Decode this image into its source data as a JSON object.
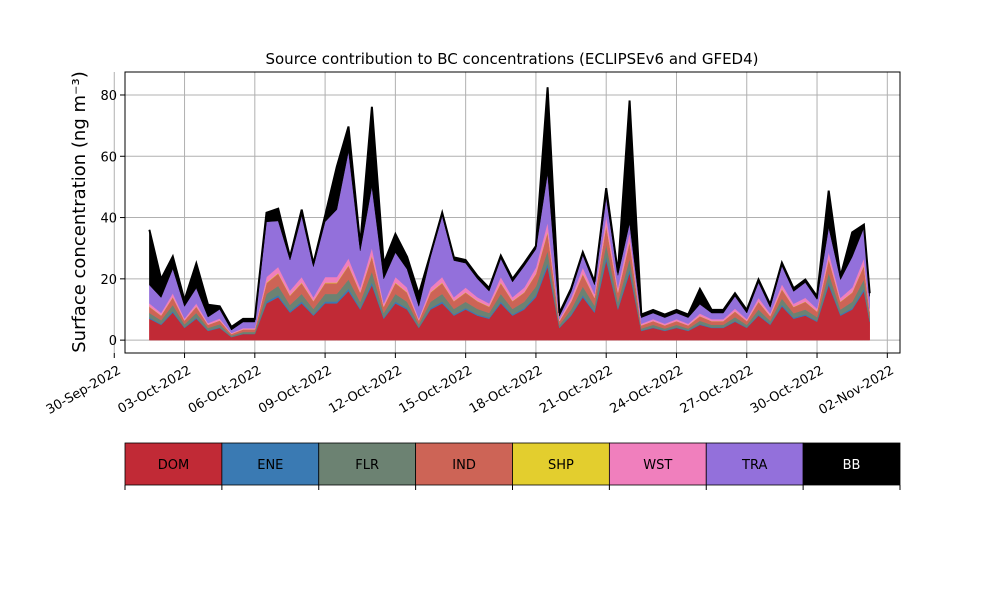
{
  "chart_data": {
    "type": "area",
    "stacked": true,
    "title": "Source contribution to BC concentrations (ECLIPSEv6 and GFED4)",
    "xlabel": "",
    "ylabel": "Surface concentration (ng m⁻³)",
    "xlim": [
      "2022-09-30T11:00",
      "2022-11-02T13:00"
    ],
    "ylim": [
      -4.2,
      87.5
    ],
    "grid": true,
    "x_ticks": [
      "2022-09-30",
      "2022-10-03",
      "2022-10-06",
      "2022-10-09",
      "2022-10-12",
      "2022-10-15",
      "2022-10-18",
      "2022-10-21",
      "2022-10-24",
      "2022-10-27",
      "2022-10-30",
      "2022-11-02"
    ],
    "x_tick_labels": [
      "30-Sep-2022",
      "03-Oct-2022",
      "06-Oct-2022",
      "09-Oct-2022",
      "12-Oct-2022",
      "15-Oct-2022",
      "18-Oct-2022",
      "21-Oct-2022",
      "24-Oct-2022",
      "27-Oct-2022",
      "30-Oct-2022",
      "02-Nov-2022"
    ],
    "y_ticks": [
      0,
      20,
      40,
      60,
      80
    ],
    "y_tick_labels": [
      "0",
      "20",
      "40",
      "60",
      "80"
    ],
    "x": [
      "2022-10-01T12:00",
      "2022-10-02T00:00",
      "2022-10-02T12:00",
      "2022-10-03T00:00",
      "2022-10-03T12:00",
      "2022-10-04T00:00",
      "2022-10-04T12:00",
      "2022-10-05T00:00",
      "2022-10-05T12:00",
      "2022-10-06T00:00",
      "2022-10-06T12:00",
      "2022-10-07T00:00",
      "2022-10-07T12:00",
      "2022-10-08T00:00",
      "2022-10-08T12:00",
      "2022-10-09T00:00",
      "2022-10-09T12:00",
      "2022-10-10T00:00",
      "2022-10-10T12:00",
      "2022-10-11T00:00",
      "2022-10-11T12:00",
      "2022-10-12T00:00",
      "2022-10-12T12:00",
      "2022-10-13T00:00",
      "2022-10-13T12:00",
      "2022-10-14T00:00",
      "2022-10-14T12:00",
      "2022-10-15T00:00",
      "2022-10-15T12:00",
      "2022-10-16T00:00",
      "2022-10-16T12:00",
      "2022-10-17T00:00",
      "2022-10-17T12:00",
      "2022-10-18T00:00",
      "2022-10-18T12:00",
      "2022-10-19T00:00",
      "2022-10-19T12:00",
      "2022-10-20T00:00",
      "2022-10-20T12:00",
      "2022-10-21T00:00",
      "2022-10-21T12:00",
      "2022-10-22T00:00",
      "2022-10-22T12:00",
      "2022-10-23T00:00",
      "2022-10-23T12:00",
      "2022-10-24T00:00",
      "2022-10-24T12:00",
      "2022-10-25T00:00",
      "2022-10-25T12:00",
      "2022-10-26T00:00",
      "2022-10-26T12:00",
      "2022-10-27T00:00",
      "2022-10-27T12:00",
      "2022-10-28T00:00",
      "2022-10-28T12:00",
      "2022-10-29T00:00",
      "2022-10-29T12:00",
      "2022-10-30T00:00",
      "2022-10-30T12:00",
      "2022-10-31T00:00",
      "2022-10-31T12:00",
      "2022-11-01T00:00",
      "2022-11-01T06:00"
    ],
    "series": [
      {
        "name": "DOM",
        "color": "#c12a36",
        "values": [
          7,
          5,
          9,
          4,
          7,
          3,
          4,
          1,
          2,
          2,
          12,
          14,
          9,
          12,
          8,
          12,
          12,
          16,
          10,
          18,
          7,
          12,
          10,
          4,
          10,
          12,
          8,
          10,
          8,
          7,
          12,
          8,
          10,
          14,
          24,
          4,
          8,
          14,
          9,
          26,
          10,
          22,
          3,
          4,
          3,
          4,
          3,
          5,
          4,
          4,
          6,
          4,
          8,
          5,
          11,
          7,
          8,
          6,
          18,
          8,
          10,
          16,
          6
        ]
      },
      {
        "name": "ENE",
        "color": "#3a7ab3",
        "values": [
          0.4,
          0.3,
          0.5,
          0.2,
          0.4,
          0.2,
          0.2,
          0.1,
          0.1,
          0.1,
          0.6,
          0.7,
          0.5,
          0.6,
          0.4,
          0.6,
          0.6,
          0.8,
          0.5,
          0.9,
          0.4,
          0.6,
          0.5,
          0.2,
          0.5,
          0.6,
          0.4,
          0.5,
          0.4,
          0.4,
          0.6,
          0.4,
          0.5,
          0.7,
          1.2,
          0.2,
          0.4,
          0.7,
          0.5,
          1.3,
          0.5,
          1.1,
          0.2,
          0.2,
          0.2,
          0.2,
          0.2,
          0.3,
          0.2,
          0.2,
          0.3,
          0.2,
          0.4,
          0.3,
          0.6,
          0.4,
          0.4,
          0.3,
          0.9,
          0.4,
          0.5,
          0.8,
          0.3
        ]
      },
      {
        "name": "FLR",
        "color": "#6c8272",
        "values": [
          1.5,
          1.2,
          2,
          1,
          1.5,
          0.8,
          1,
          0.4,
          0.6,
          0.6,
          2.5,
          3,
          2,
          2.5,
          1.8,
          2.5,
          2.5,
          3,
          2,
          3.5,
          1.5,
          2.5,
          2,
          1,
          2,
          2.5,
          1.8,
          2,
          1.8,
          1.5,
          2.5,
          1.8,
          2,
          2.8,
          4,
          0.8,
          1.6,
          2.8,
          1.8,
          4,
          2,
          3.5,
          0.6,
          0.8,
          0.6,
          0.8,
          0.6,
          1,
          0.8,
          0.8,
          1.2,
          0.8,
          1.6,
          1,
          2,
          1.4,
          1.6,
          1.2,
          3,
          1.6,
          2,
          3,
          1.2
        ]
      },
      {
        "name": "IND",
        "color": "#cd6456",
        "values": [
          2,
          1.5,
          2.5,
          1.2,
          2,
          1,
          1.2,
          0.5,
          0.8,
          0.8,
          3.5,
          4,
          3,
          3.5,
          2.5,
          3.5,
          3.5,
          4.5,
          3,
          5,
          2,
          3.5,
          3,
          1.2,
          3,
          3.5,
          2.5,
          3,
          2.5,
          2,
          3.5,
          2.5,
          3,
          4,
          6,
          1.2,
          2.5,
          4,
          2.5,
          6,
          3,
          5.5,
          1,
          1.2,
          1,
          1.2,
          1,
          1.5,
          1.2,
          1.2,
          1.8,
          1.2,
          2.5,
          1.5,
          3,
          2,
          2.5,
          1.8,
          4.5,
          2.5,
          3,
          4.5,
          1.8
        ]
      },
      {
        "name": "SHP",
        "color": "#e3ce2e",
        "values": [
          0.1,
          0.1,
          0.1,
          0.05,
          0.1,
          0.05,
          0.05,
          0.02,
          0.03,
          0.03,
          0.2,
          0.2,
          0.15,
          0.2,
          0.1,
          0.2,
          0.2,
          0.2,
          0.15,
          0.25,
          0.1,
          0.2,
          0.15,
          0.05,
          0.15,
          0.2,
          0.1,
          0.15,
          0.1,
          0.1,
          0.2,
          0.1,
          0.15,
          0.2,
          0.3,
          0.05,
          0.1,
          0.2,
          0.1,
          0.3,
          0.15,
          0.3,
          0.05,
          0.05,
          0.05,
          0.05,
          0.05,
          0.1,
          0.05,
          0.05,
          0.1,
          0.05,
          0.1,
          0.1,
          0.15,
          0.1,
          0.1,
          0.1,
          0.2,
          0.1,
          0.15,
          0.2,
          0.1
        ]
      },
      {
        "name": "WST",
        "color": "#f07fbd",
        "values": [
          1,
          0.8,
          1.2,
          0.6,
          1,
          0.5,
          0.6,
          0.3,
          0.4,
          0.4,
          1.8,
          2,
          1.5,
          1.8,
          1.2,
          1.8,
          1.8,
          2.2,
          1.5,
          2.5,
          1,
          1.8,
          1.5,
          0.6,
          1.5,
          1.8,
          1.2,
          1.5,
          1.2,
          1,
          1.8,
          1.2,
          1.5,
          2,
          3,
          0.6,
          1.2,
          2,
          1.2,
          3,
          1.5,
          2.8,
          0.5,
          0.6,
          0.5,
          0.6,
          0.5,
          0.8,
          0.6,
          0.6,
          0.9,
          0.6,
          1.2,
          0.8,
          1.5,
          1,
          1.2,
          0.9,
          2.2,
          1.2,
          1.5,
          2.2,
          0.9
        ]
      },
      {
        "name": "TRA",
        "color": "#9370db",
        "values": [
          6,
          5,
          8,
          4,
          5,
          2,
          3,
          1,
          2,
          2,
          18,
          15,
          10,
          20,
          10,
          18,
          22,
          35,
          12,
          20,
          8,
          8,
          6,
          4,
          10,
          20,
          12,
          8,
          6,
          4,
          6,
          5,
          7,
          6,
          16,
          1,
          2,
          4,
          3,
          6,
          4,
          3,
          2,
          2,
          2,
          2,
          2,
          3,
          2,
          2,
          4,
          2,
          5,
          2,
          6,
          4,
          5,
          3,
          8,
          6,
          10,
          10,
          4
        ]
      },
      {
        "name": "BB",
        "color": "#000000",
        "values": [
          18,
          6,
          4,
          2,
          8,
          4,
          1,
          1,
          1,
          1,
          3,
          4,
          1,
          2,
          1,
          2,
          14,
          8,
          2,
          26,
          5,
          6,
          4,
          4,
          1,
          1,
          1,
          1,
          1,
          1,
          1,
          1,
          1,
          1,
          28,
          1,
          1,
          1,
          1,
          3,
          1,
          40,
          1,
          1,
          1,
          1,
          1,
          5,
          1,
          1,
          1,
          1,
          1,
          1,
          1,
          1,
          1,
          1,
          12,
          1,
          8,
          1,
          1
        ]
      }
    ]
  },
  "legend": {
    "items": [
      {
        "label": "DOM",
        "color": "#c12a36",
        "text_color": "#000000"
      },
      {
        "label": "ENE",
        "color": "#3a7ab3",
        "text_color": "#000000"
      },
      {
        "label": "FLR",
        "color": "#6c8272",
        "text_color": "#000000"
      },
      {
        "label": "IND",
        "color": "#cd6456",
        "text_color": "#000000"
      },
      {
        "label": "SHP",
        "color": "#e3ce2e",
        "text_color": "#000000"
      },
      {
        "label": "WST",
        "color": "#f07fbd",
        "text_color": "#000000"
      },
      {
        "label": "TRA",
        "color": "#9370db",
        "text_color": "#000000"
      },
      {
        "label": "BB",
        "color": "#000000",
        "text_color": "#ffffff"
      }
    ]
  }
}
